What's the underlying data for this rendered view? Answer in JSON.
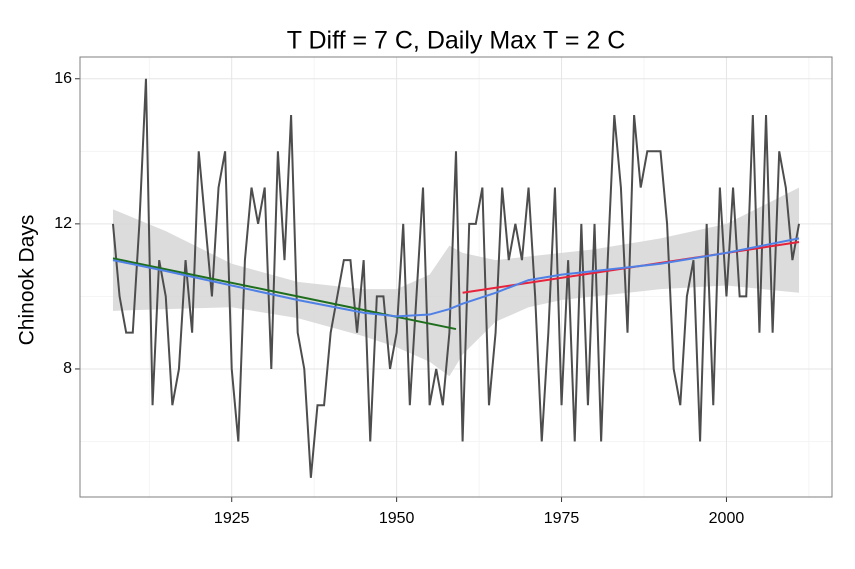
{
  "chart_data": {
    "type": "line",
    "title": "T Diff = 7 C, Daily Max T = 2 C",
    "y_label": "Chinook Days",
    "x": [
      1907,
      1908,
      1909,
      1910,
      1911,
      1912,
      1913,
      1914,
      1915,
      1916,
      1917,
      1918,
      1919,
      1920,
      1921,
      1922,
      1923,
      1924,
      1925,
      1926,
      1927,
      1928,
      1929,
      1930,
      1931,
      1932,
      1933,
      1934,
      1935,
      1936,
      1937,
      1938,
      1939,
      1940,
      1941,
      1942,
      1943,
      1944,
      1945,
      1946,
      1947,
      1948,
      1949,
      1950,
      1951,
      1952,
      1953,
      1954,
      1955,
      1956,
      1957,
      1958,
      1959,
      1960,
      1961,
      1962,
      1963,
      1964,
      1965,
      1966,
      1967,
      1968,
      1969,
      1970,
      1971,
      1972,
      1973,
      1974,
      1975,
      1976,
      1977,
      1978,
      1979,
      1980,
      1981,
      1982,
      1983,
      1984,
      1985,
      1986,
      1987,
      1988,
      1989,
      1990,
      1991,
      1992,
      1993,
      1994,
      1995,
      1996,
      1997,
      1998,
      1999,
      2000,
      2001,
      2002,
      2003,
      2004,
      2005,
      2006,
      2007,
      2008,
      2009,
      2010,
      2011
    ],
    "values": [
      12,
      10,
      9,
      9,
      12,
      16,
      7,
      11,
      10,
      7,
      8,
      11,
      9,
      14,
      12,
      10,
      13,
      14,
      8,
      6,
      11,
      13,
      12,
      13,
      8,
      14,
      11,
      15,
      9,
      8,
      5,
      7,
      7,
      9,
      10,
      11,
      11,
      9,
      11,
      6,
      10,
      10,
      8,
      9,
      12,
      7,
      10,
      13,
      7,
      8,
      7,
      9,
      14,
      6,
      12,
      12,
      13,
      7,
      9,
      13,
      11,
      12,
      11,
      13,
      10,
      6,
      9,
      13,
      7,
      11,
      6,
      12,
      7,
      12,
      6,
      11,
      15,
      13,
      9,
      15,
      13,
      14,
      14,
      14,
      12,
      8,
      7,
      10,
      11,
      6,
      12,
      7,
      13,
      10,
      13,
      10,
      10,
      15,
      9,
      15,
      9,
      14,
      13,
      11,
      12
    ],
    "color": "#4d4d4d",
    "loess": {
      "x": [
        1907,
        1915,
        1925,
        1935,
        1945,
        1950,
        1955,
        1958,
        1960,
        1965,
        1970,
        1975,
        1980,
        1990,
        2000,
        2011
      ],
      "values": [
        11.0,
        10.7,
        10.3,
        9.9,
        9.55,
        9.45,
        9.5,
        9.65,
        9.8,
        10.1,
        10.45,
        10.6,
        10.7,
        10.9,
        11.2,
        11.6
      ],
      "lower": [
        9.6,
        9.65,
        9.7,
        9.4,
        8.9,
        8.6,
        8.2,
        7.8,
        8.4,
        9.3,
        9.7,
        9.9,
        10.0,
        10.2,
        10.3,
        10.1
      ],
      "upper": [
        12.4,
        11.8,
        10.9,
        10.4,
        10.2,
        10.2,
        10.6,
        11.4,
        11.2,
        11.0,
        11.1,
        11.2,
        11.3,
        11.6,
        12.0,
        13.0
      ],
      "color": "#4f80e6",
      "band_color": "#d6d6d6"
    },
    "fits": [
      {
        "x": [
          1907,
          1959
        ],
        "values": [
          11.05,
          9.1
        ],
        "color": "#1e6e1e"
      },
      {
        "x": [
          1960,
          2011
        ],
        "values": [
          10.1,
          11.5
        ],
        "color": "#e8223a"
      }
    ],
    "xlim": [
      1902,
      2016
    ],
    "ylim": [
      4.47,
      16.6
    ],
    "xticks": [
      1925,
      1950,
      1975,
      2000
    ],
    "yticks": [
      8,
      12,
      16
    ],
    "minor_xticks": [
      1912.5,
      1937.5,
      1962.5,
      1987.5,
      2012.5
    ],
    "minor_yticks": [
      6,
      10,
      14
    ],
    "grid": true
  }
}
